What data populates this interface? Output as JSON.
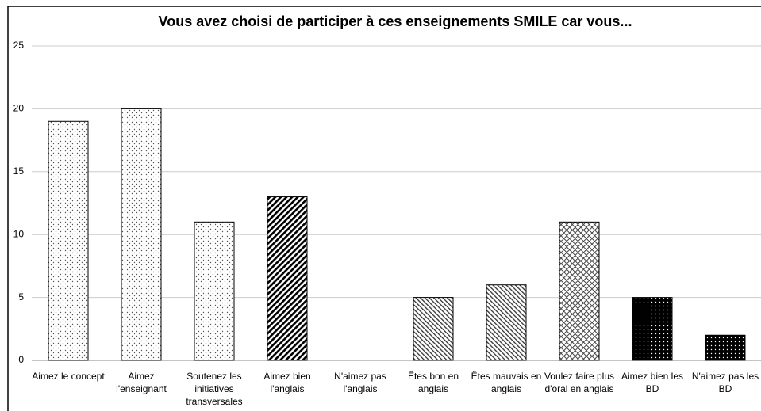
{
  "chart_data": {
    "type": "bar",
    "title": "Vous avez choisi de participer à ces enseignements SMILE car vous...",
    "categories": [
      "Aimez le concept",
      "Aimez l'enseignant",
      "Soutenez les initiatives transversales",
      "Aimez bien l'anglais",
      "N'aimez pas l'anglais",
      "Êtes bon en anglais",
      "Êtes mauvais en anglais",
      "Voulez faire plus d'oral en anglais",
      "Aimez bien les BD",
      "N'aimez pas les BD"
    ],
    "values": [
      19,
      20,
      11,
      13,
      0,
      5,
      6,
      11,
      5,
      2
    ],
    "patterns": [
      "dots",
      "dots",
      "dots",
      "dense-diagonal",
      "dense-diagonal",
      "diagonal",
      "diagonal",
      "crosshatch",
      "black-dots",
      "black-dots"
    ],
    "color": "#000000",
    "ylim": [
      0,
      25
    ],
    "yticks": [
      0,
      5,
      10,
      15,
      20,
      25
    ],
    "grid": true
  }
}
